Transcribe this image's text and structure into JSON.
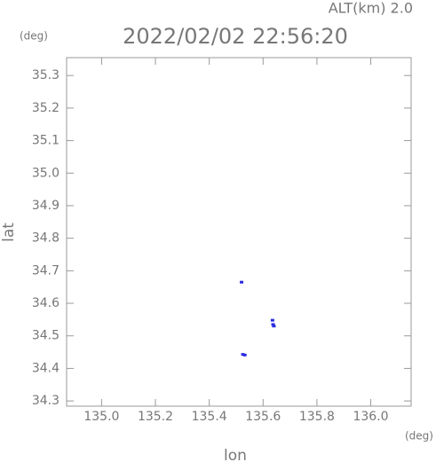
{
  "chart_data": {
    "type": "scatter",
    "title": "2022/02/02 22:56:20",
    "annotation": "ALT(km) 2.0",
    "y_unit": "(deg)",
    "x_unit": "(deg)",
    "xlabel": "lon",
    "ylabel": "lat",
    "xlim": [
      134.87,
      136.15
    ],
    "ylim": [
      34.284,
      35.355
    ],
    "xticks": [
      {
        "value": 135.0,
        "label": "135.0"
      },
      135.2,
      135.4,
      135.6,
      135.8,
      {
        "value": 136.0,
        "label": "136.0"
      }
    ],
    "yticks": [
      34.3,
      34.4,
      34.5,
      34.6,
      34.7,
      34.8,
      34.9,
      {
        "value": 35.0,
        "label": "35.0"
      },
      35.1,
      35.2,
      35.3
    ],
    "series": [
      {
        "name": "echo",
        "color": "#2a2ae0",
        "x": [
          135.525,
          135.532,
          135.64,
          135.637,
          135.52,
          135.635
        ],
        "values": [
          34.443,
          34.441,
          34.53,
          34.535,
          34.665,
          34.548
        ]
      }
    ]
  }
}
